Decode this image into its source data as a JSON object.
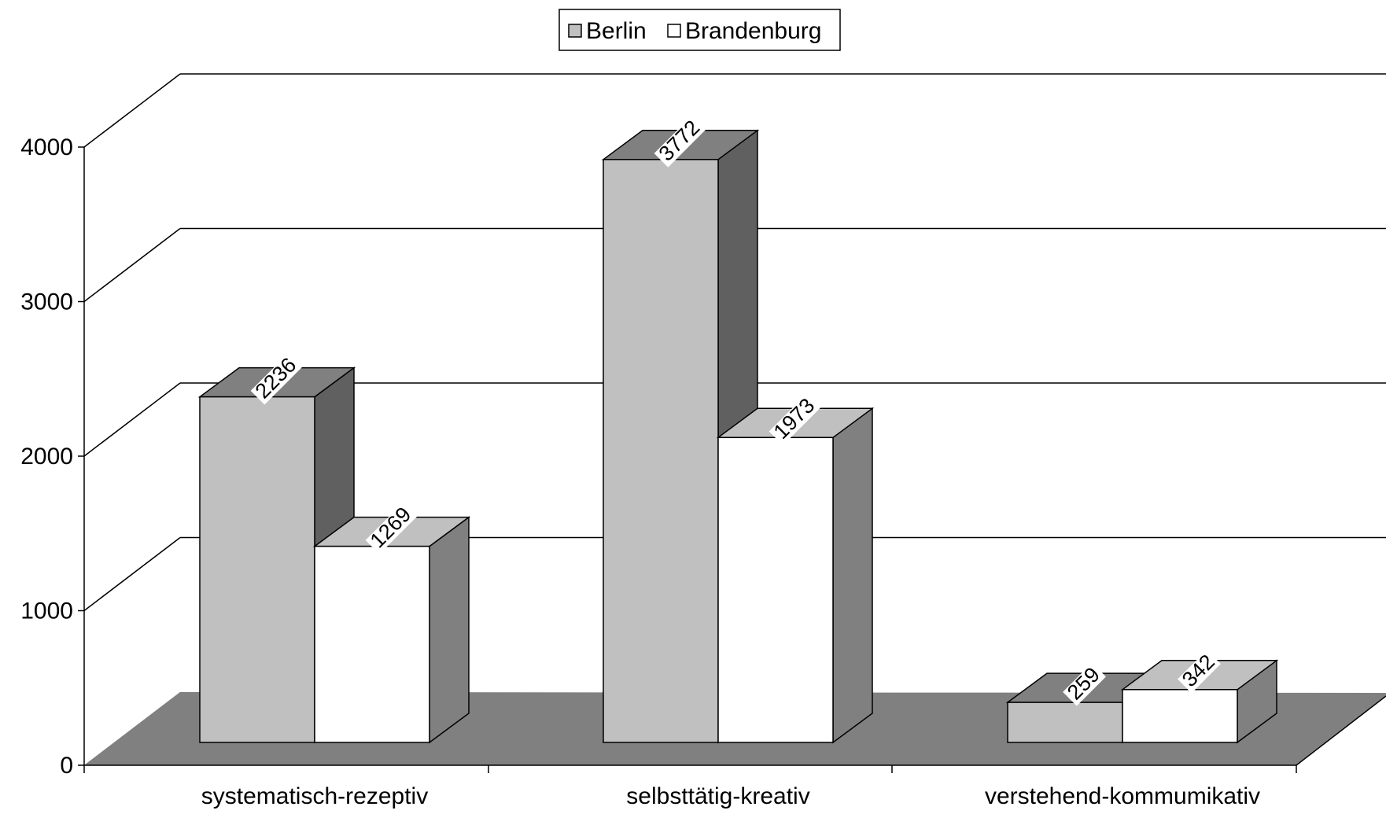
{
  "chart_data": {
    "type": "bar",
    "style": "3d-clustered-column",
    "categories": [
      "systematisch-rezeptiv",
      "selbsttätig-kreativ",
      "verstehend-kommumikativ"
    ],
    "series": [
      {
        "name": "Berlin",
        "values": [
          2236,
          3772,
          259
        ],
        "color": "#c0c0c0",
        "side_color": "#606060",
        "top_color": "#808080"
      },
      {
        "name": "Brandenburg",
        "values": [
          1269,
          1973,
          342
        ],
        "color": "#ffffff",
        "side_color": "#808080",
        "top_color": "#c0c0c0"
      }
    ],
    "ylim": [
      0,
      4000
    ],
    "y_ticks": [
      0,
      1000,
      2000,
      3000,
      4000
    ],
    "grid": true,
    "legend_position": "top-center",
    "floor_color": "#808080",
    "xlabel": "",
    "ylabel": "",
    "title": ""
  }
}
